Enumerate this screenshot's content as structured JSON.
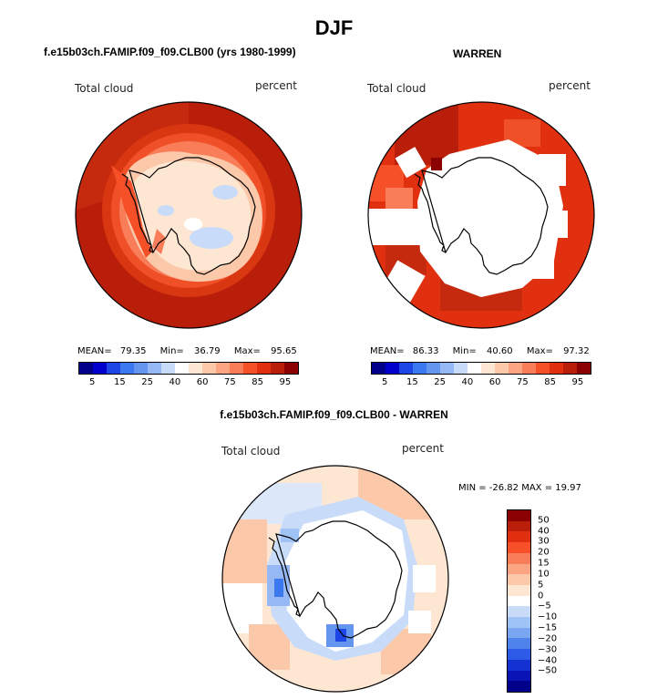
{
  "figure_title": "DJF",
  "palette": {
    "full": [
      "#00008b",
      "#0000cd",
      "#1e46e6",
      "#3c78f0",
      "#6496f0",
      "#96b9f5",
      "#c8dcfa",
      "#ffffff",
      "#fde6d2",
      "#fcc8aa",
      "#fca582",
      "#fa7d5a",
      "#f55028",
      "#e03010",
      "#b81e0a",
      "#8b0000"
    ],
    "diff": [
      "#8b0000",
      "#b81e0a",
      "#e03010",
      "#f55028",
      "#fa7d5a",
      "#fca582",
      "#fcc8aa",
      "#fde6d2",
      "#ffffff",
      "#c8dcfa",
      "#a0c3f5",
      "#7aa5f0",
      "#5082eb",
      "#2d5ae6",
      "#1432d2",
      "#0a14b4",
      "#00008b"
    ]
  },
  "panel_left": {
    "title": "f.e15b03ch.FAMIP.f09_f09.CLB00 (yrs 1980-1999)",
    "left_label": "Total cloud",
    "right_label": "percent",
    "mean_label": "MEAN=",
    "mean_value": "79.35",
    "min_label": "Min=",
    "min_value": "36.79",
    "max_label": "Max=",
    "max_value": "95.65",
    "ticks": [
      "5",
      "15",
      "25",
      "40",
      "60",
      "75",
      "85",
      "95"
    ]
  },
  "panel_right": {
    "title": "WARREN",
    "left_label": "Total cloud",
    "right_label": "percent",
    "mean_label": "MEAN=",
    "mean_value": "86.33",
    "min_label": "Min=",
    "min_value": "40.60",
    "max_label": "Max=",
    "max_value": "97.32",
    "ticks": [
      "5",
      "15",
      "25",
      "40",
      "60",
      "75",
      "85",
      "95"
    ]
  },
  "panel_diff": {
    "title": "f.e15b03ch.FAMIP.f09_f09.CLB00 - WARREN",
    "left_label": "Total cloud",
    "right_label": "percent",
    "minmax": "MIN = -26.82 MAX =  19.97",
    "ticks": [
      "50",
      "40",
      "30",
      "20",
      "15",
      "10",
      "5",
      "0",
      "−5",
      "−10",
      "−15",
      "−20",
      "−30",
      "−40",
      "−50"
    ]
  }
}
